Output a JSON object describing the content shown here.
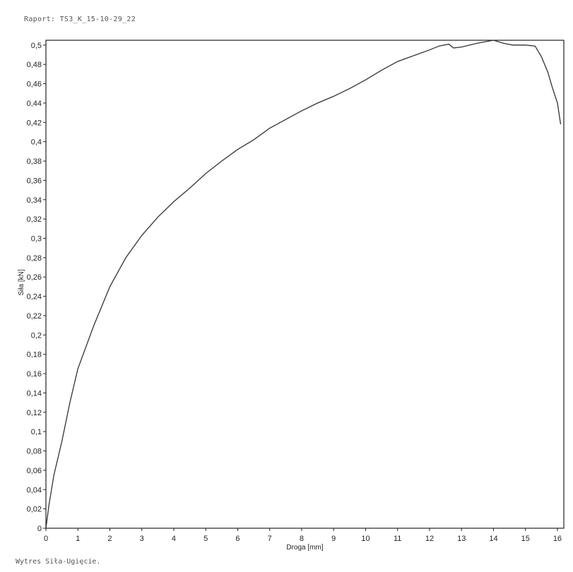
{
  "header": {
    "report_title": "Raport: TS3_K_15-10-29_22"
  },
  "footer": {
    "caption": "Wytres Siła-Ugięcie."
  },
  "chart_data": {
    "type": "line",
    "xlabel": "Droga [mm]",
    "ylabel": "Siła [kN]",
    "xlim": [
      0,
      16.2
    ],
    "ylim": [
      0,
      0.505
    ],
    "x_ticks": [
      0,
      1,
      2,
      3,
      4,
      5,
      6,
      7,
      8,
      9,
      10,
      11,
      12,
      13,
      14,
      15,
      16
    ],
    "y_ticks": [
      0,
      0.02,
      0.04,
      0.06,
      0.08,
      0.1,
      0.12,
      0.14,
      0.16,
      0.18,
      0.2,
      0.22,
      0.24,
      0.26,
      0.28,
      0.3,
      0.32,
      0.34,
      0.36,
      0.38,
      0.4,
      0.42,
      0.44,
      0.46,
      0.48,
      0.5
    ],
    "y_tick_labels": [
      "0",
      "0,02",
      "0,04",
      "0,06",
      "0,08",
      "0,1",
      "0,12",
      "0,14",
      "0,16",
      "0,18",
      "0,2",
      "0,22",
      "0,24",
      "0,26",
      "0,28",
      "0,3",
      "0,32",
      "0,34",
      "0,36",
      "0,38",
      "0,4",
      "0,42",
      "0,44",
      "0,46",
      "0,48",
      "0,5"
    ],
    "grid": false,
    "series": [
      {
        "color": "#333333",
        "x": [
          0,
          0.1,
          0.25,
          0.5,
          0.75,
          1,
          1.5,
          2,
          2.5,
          3,
          3.5,
          4,
          4.5,
          5,
          5.5,
          6,
          6.5,
          7,
          7.5,
          8,
          8.5,
          9,
          9.5,
          10,
          10.5,
          11,
          11.5,
          12,
          12.3,
          12.6,
          12.75,
          13,
          13.5,
          14,
          14.3,
          14.6,
          15,
          15.3,
          15.5,
          15.7,
          15.85,
          16,
          16.1
        ],
        "y": [
          0,
          0.025,
          0.055,
          0.09,
          0.13,
          0.165,
          0.21,
          0.25,
          0.28,
          0.303,
          0.322,
          0.338,
          0.352,
          0.367,
          0.38,
          0.392,
          0.402,
          0.414,
          0.423,
          0.432,
          0.44,
          0.447,
          0.455,
          0.464,
          0.474,
          0.483,
          0.489,
          0.495,
          0.499,
          0.501,
          0.497,
          0.498,
          0.502,
          0.505,
          0.502,
          0.5,
          0.5,
          0.499,
          0.488,
          0.472,
          0.455,
          0.44,
          0.418
        ]
      }
    ]
  }
}
